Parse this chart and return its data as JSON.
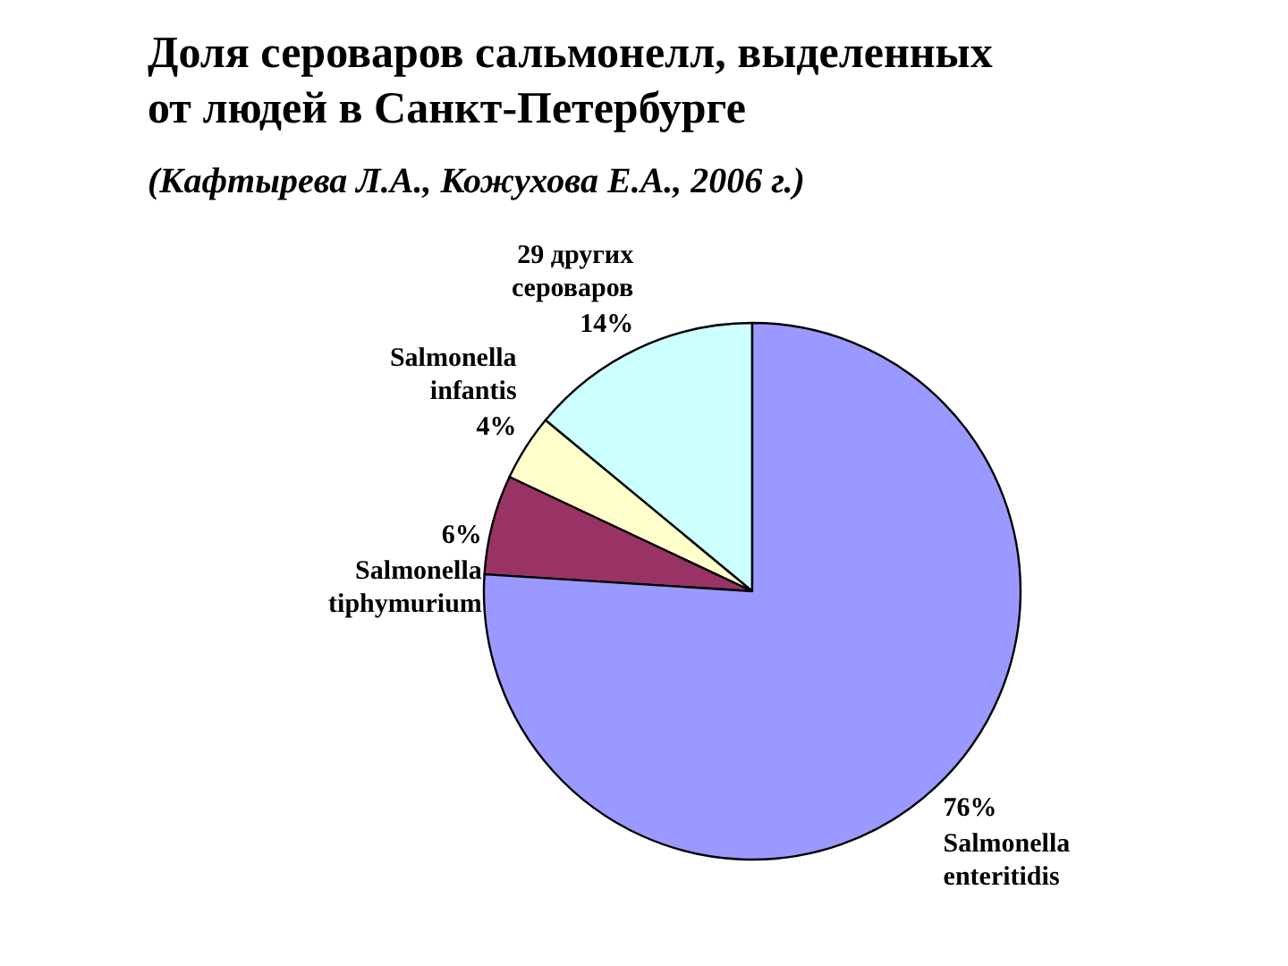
{
  "chart_data": {
    "type": "pie",
    "title": "Доля сероваров сальмонелл, выделенных от людей в Санкт-Петербурге",
    "subtitle": "(Кафтырева Л.А., Кожухова Е.А., 2006 г.)",
    "categories": [
      "29 других сероваров",
      "Salmonella infantis",
      "Salmonella tiphymurium",
      "Salmonella enteritidis"
    ],
    "values": [
      14,
      4,
      6,
      76
    ],
    "colors": [
      "#ccffff",
      "#ffffcc",
      "#993366",
      "#9999ff"
    ],
    "value_labels": [
      "14%",
      "4%",
      "6%",
      "76%"
    ]
  }
}
